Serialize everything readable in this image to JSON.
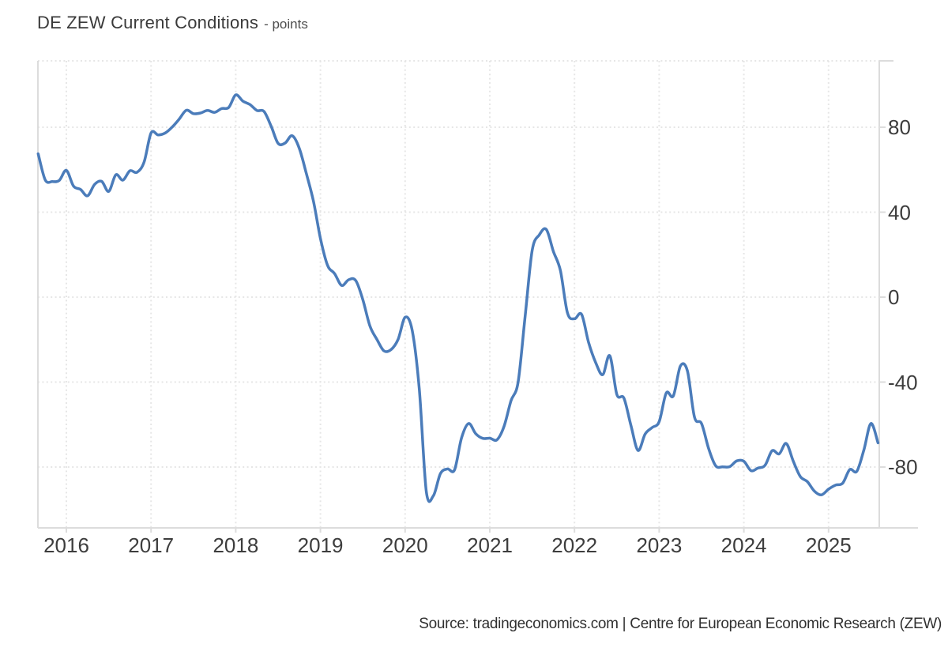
{
  "header": {
    "title": "DE ZEW Current Conditions",
    "unit_label": "- points"
  },
  "footer": {
    "source": "Source: tradingeconomics.com | Centre for European Economic Research (ZEW)"
  },
  "colors": {
    "line": "#4b7cba",
    "grid": "#e6e6e6",
    "axis": "#dcdcdc",
    "tick": "#dcdcdc",
    "title_text": "#3a3a3a",
    "axis_label_text": "#3d3d3d",
    "footer_text": "#303030",
    "background": "#ffffff"
  },
  "chart_data": {
    "type": "line",
    "title": "DE ZEW Current Conditions",
    "ylabel": "points",
    "xlabel": "",
    "legend": "none",
    "grid": "dotted",
    "frequency": "monthly",
    "x_start": "2015-09",
    "x_end": "2025-08",
    "x_tick_labels": [
      "2016",
      "2017",
      "2018",
      "2019",
      "2020",
      "2021",
      "2022",
      "2023",
      "2024",
      "2025"
    ],
    "y_ticks": [
      80,
      40,
      0,
      -40,
      -80
    ],
    "y_tick_labels": [
      "80",
      "40",
      "0",
      "-40",
      "-80"
    ],
    "ylim": [
      -109,
      111
    ],
    "series": [
      {
        "name": "DE ZEW Current Conditions",
        "values": [
          67.5,
          55.2,
          54.4,
          55.0,
          59.7,
          52.3,
          50.7,
          47.7,
          53.1,
          54.5,
          49.8,
          57.6,
          55.1,
          59.5,
          58.8,
          63.5,
          77.3,
          76.4,
          77.3,
          80.1,
          83.9,
          88.0,
          86.4,
          86.7,
          87.9,
          87.0,
          88.8,
          89.3,
          95.2,
          92.3,
          90.7,
          87.9,
          87.4,
          80.6,
          72.4,
          72.6,
          76.0,
          70.1,
          58.2,
          45.3,
          27.6,
          15.0,
          11.1,
          5.5,
          8.2,
          7.8,
          -1.1,
          -13.5,
          -19.9,
          -25.3,
          -24.7,
          -19.9,
          -9.5,
          -15.7,
          -43.1,
          -91.5,
          -93.5,
          -83.1,
          -80.9,
          -81.3,
          -66.2,
          -59.5,
          -64.3,
          -66.5,
          -66.4,
          -67.2,
          -61.0,
          -48.8,
          -40.1,
          -9.1,
          21.9,
          29.3,
          31.9,
          21.6,
          12.5,
          -7.4,
          -10.2,
          -8.1,
          -21.4,
          -30.8,
          -36.5,
          -27.6,
          -45.8,
          -47.6,
          -60.5,
          -72.2,
          -64.5,
          -61.4,
          -58.6,
          -45.1,
          -46.5,
          -32.5,
          -34.8,
          -56.5,
          -59.5,
          -71.3,
          -79.4,
          -79.9,
          -79.8,
          -77.1,
          -77.3,
          -81.7,
          -80.5,
          -79.2,
          -72.3,
          -73.8,
          -68.9,
          -77.3,
          -84.5,
          -86.9,
          -91.4,
          -93.1,
          -90.4,
          -88.5,
          -87.6,
          -81.2,
          -82.0,
          -72.0,
          -59.5,
          -68.6
        ]
      }
    ]
  }
}
